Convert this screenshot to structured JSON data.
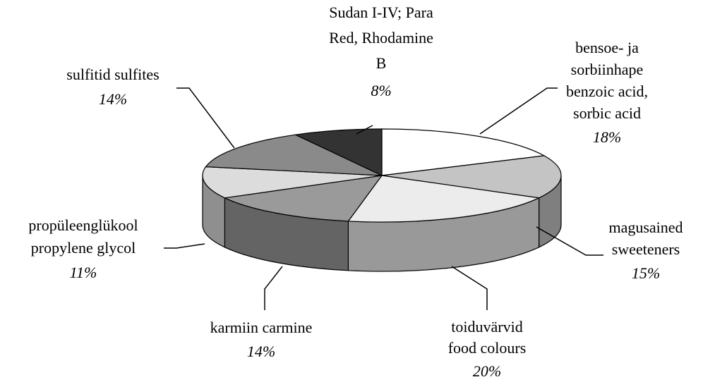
{
  "chart_data": {
    "type": "pie",
    "categories": [
      [
        "bensoe- ja",
        "sorbiinhape",
        "benzoic acid,",
        "sorbic acid"
      ],
      [
        "magusained",
        "sweeteners"
      ],
      [
        "toiduvärvid",
        "food colours"
      ],
      [
        "karmiin carmine"
      ],
      [
        "propüleenglükool",
        "propylene glycol"
      ],
      [
        "sulfitid sulfites"
      ],
      [
        "Sudan I-IV; Para",
        "Red, Rhodamine",
        "B"
      ]
    ],
    "values": [
      18,
      15,
      20,
      14,
      11,
      14,
      8
    ],
    "value_labels": [
      "18%",
      "15%",
      "20%",
      "14%",
      "11%",
      "14%",
      "8%"
    ],
    "colors": [
      "#ffffff",
      "#c4c4c4",
      "#ececec",
      "#9a9a9a",
      "#dcdcdc",
      "#8a8a8a",
      "#333333"
    ]
  }
}
